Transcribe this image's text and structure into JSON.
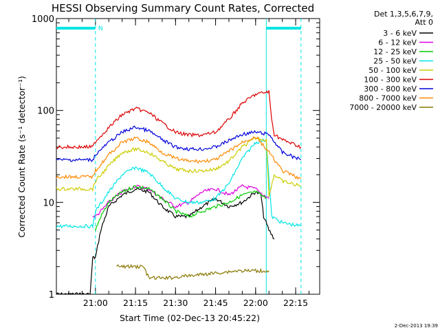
{
  "chart_data": {
    "type": "line",
    "title": "HESSI Observing Summary Count Rates, Corrected",
    "ylabel": "Corrected Count Rate (s⁻¹ detector⁻¹)",
    "xlabel": "Start Time (02-Dec-13 20:45:22)",
    "footer": "2-Dec-2013 19:39",
    "y_scale": "log",
    "ylim": [
      1,
      1000
    ],
    "y_ticks": [
      "1",
      "10",
      "100",
      "1000"
    ],
    "x_range": [
      "20:45:22",
      "22:24"
    ],
    "x_ticks": [
      "21:00",
      "21:15",
      "21:30",
      "21:45",
      "22:00",
      "22:15"
    ],
    "grid": false,
    "legend_placement": "right, outside plot",
    "legend_header": [
      "Det 1,3,5,6,7,9,",
      "Att 0"
    ],
    "markers": {
      "night_label": "N",
      "top_bars": [
        [
          "20:45:22",
          "21:00"
        ],
        [
          "22:04",
          "22:17"
        ]
      ],
      "dashed_lines": [
        "21:00",
        "22:17"
      ],
      "solid_lines": [
        "22:04"
      ],
      "color": "#00e5e5"
    },
    "series": [
      {
        "name": "3 - 6 keV",
        "color": "#000000",
        "x": [
          "20:45",
          "20:58",
          "20:59",
          "21:00",
          "21:02",
          "21:05",
          "21:10",
          "21:15",
          "21:20",
          "21:25",
          "21:30",
          "21:35",
          "21:40",
          "21:45",
          "21:50",
          "21:55",
          "22:00",
          "22:02",
          "22:03",
          "22:05",
          "22:07"
        ],
        "y": [
          1,
          1,
          2.5,
          2.5,
          5,
          9,
          12,
          14,
          13,
          9,
          7,
          7,
          9,
          11,
          9,
          10,
          13,
          12,
          7,
          5,
          4
        ]
      },
      {
        "name": "6 - 12 keV",
        "color": "#dd00dd",
        "x": [
          "20:59",
          "21:00",
          "21:02",
          "21:05",
          "21:10",
          "21:15",
          "21:20",
          "21:25",
          "21:30",
          "21:35",
          "21:40",
          "21:45",
          "21:50",
          "21:55",
          "22:00",
          "22:03",
          "22:05"
        ],
        "y": [
          7,
          7,
          8,
          10,
          13,
          15,
          14,
          11,
          9,
          10,
          13,
          14,
          12,
          15,
          14,
          12,
          11
        ]
      },
      {
        "name": "12 - 25 keV",
        "color": "#00cc00",
        "x": [
          "21:00",
          "21:02",
          "21:05",
          "21:10",
          "21:15",
          "21:20",
          "21:25",
          "21:30",
          "21:35",
          "21:40",
          "21:45",
          "21:50",
          "21:55",
          "22:00",
          "22:04"
        ],
        "y": [
          5,
          7,
          10,
          13,
          15,
          14,
          11,
          8,
          7,
          8,
          9,
          10,
          12,
          13,
          11
        ]
      },
      {
        "name": "25 - 50 keV",
        "color": "#00e5e5",
        "x": [
          "20:45",
          "20:59",
          "21:00",
          "21:05",
          "21:10",
          "21:15",
          "21:20",
          "21:25",
          "21:30",
          "21:35",
          "21:40",
          "21:45",
          "21:50",
          "21:55",
          "22:00",
          "22:04",
          "22:06",
          "22:10",
          "22:17"
        ],
        "y": [
          5.5,
          5.5,
          8,
          13,
          20,
          24,
          21,
          15,
          11,
          10,
          10,
          11,
          16,
          30,
          45,
          48,
          7,
          6,
          5.5
        ]
      },
      {
        "name": "50 - 100 keV",
        "color": "#cccc00",
        "x": [
          "20:45",
          "20:59",
          "21:00",
          "21:05",
          "21:10",
          "21:15",
          "21:20",
          "21:25",
          "21:30",
          "21:35",
          "21:40",
          "21:45",
          "21:50",
          "21:55",
          "22:00",
          "22:04",
          "22:05",
          "22:07",
          "22:10",
          "22:17"
        ],
        "y": [
          14,
          14,
          17,
          25,
          35,
          38,
          35,
          28,
          23,
          22,
          22,
          23,
          28,
          40,
          50,
          48,
          12,
          20,
          17,
          15
        ]
      },
      {
        "name": "100 - 300 keV",
        "color": "#dd0000",
        "x": [
          "20:45",
          "20:59",
          "21:00",
          "21:05",
          "21:10",
          "21:15",
          "21:20",
          "21:25",
          "21:30",
          "21:35",
          "21:40",
          "21:45",
          "21:50",
          "21:55",
          "22:00",
          "22:05",
          "22:06",
          "22:07",
          "22:10",
          "22:17"
        ],
        "y": [
          40,
          40,
          46,
          65,
          90,
          105,
          95,
          73,
          58,
          54,
          54,
          58,
          80,
          120,
          150,
          160,
          80,
          55,
          48,
          40
        ]
      },
      {
        "name": "300 - 800 keV",
        "color": "#0000dd",
        "x": [
          "20:45",
          "20:59",
          "21:00",
          "21:05",
          "21:10",
          "21:15",
          "21:20",
          "21:25",
          "21:30",
          "21:35",
          "21:40",
          "21:45",
          "21:50",
          "21:55",
          "22:00",
          "22:05",
          "22:10",
          "22:17"
        ],
        "y": [
          29,
          29,
          33,
          45,
          58,
          66,
          60,
          48,
          40,
          38,
          38,
          40,
          47,
          55,
          58,
          55,
          35,
          29
        ]
      },
      {
        "name": "800 - 7000 keV",
        "color": "#ff8800",
        "x": [
          "20:45",
          "20:59",
          "21:00",
          "21:05",
          "21:10",
          "21:15",
          "21:20",
          "21:25",
          "21:30",
          "21:35",
          "21:40",
          "21:45",
          "21:50",
          "21:55",
          "22:00",
          "22:05",
          "22:10",
          "22:17"
        ],
        "y": [
          19,
          19,
          22,
          33,
          45,
          50,
          45,
          35,
          30,
          28,
          28,
          29,
          36,
          45,
          52,
          35,
          22,
          18
        ]
      },
      {
        "name": "7000 - 20000 keV",
        "color": "#887700",
        "x": [
          "21:08",
          "21:18",
          "21:20",
          "21:27",
          "21:53",
          "22:05"
        ],
        "y": [
          2,
          2,
          1.5,
          1.5,
          1.8,
          1.8
        ]
      }
    ]
  }
}
